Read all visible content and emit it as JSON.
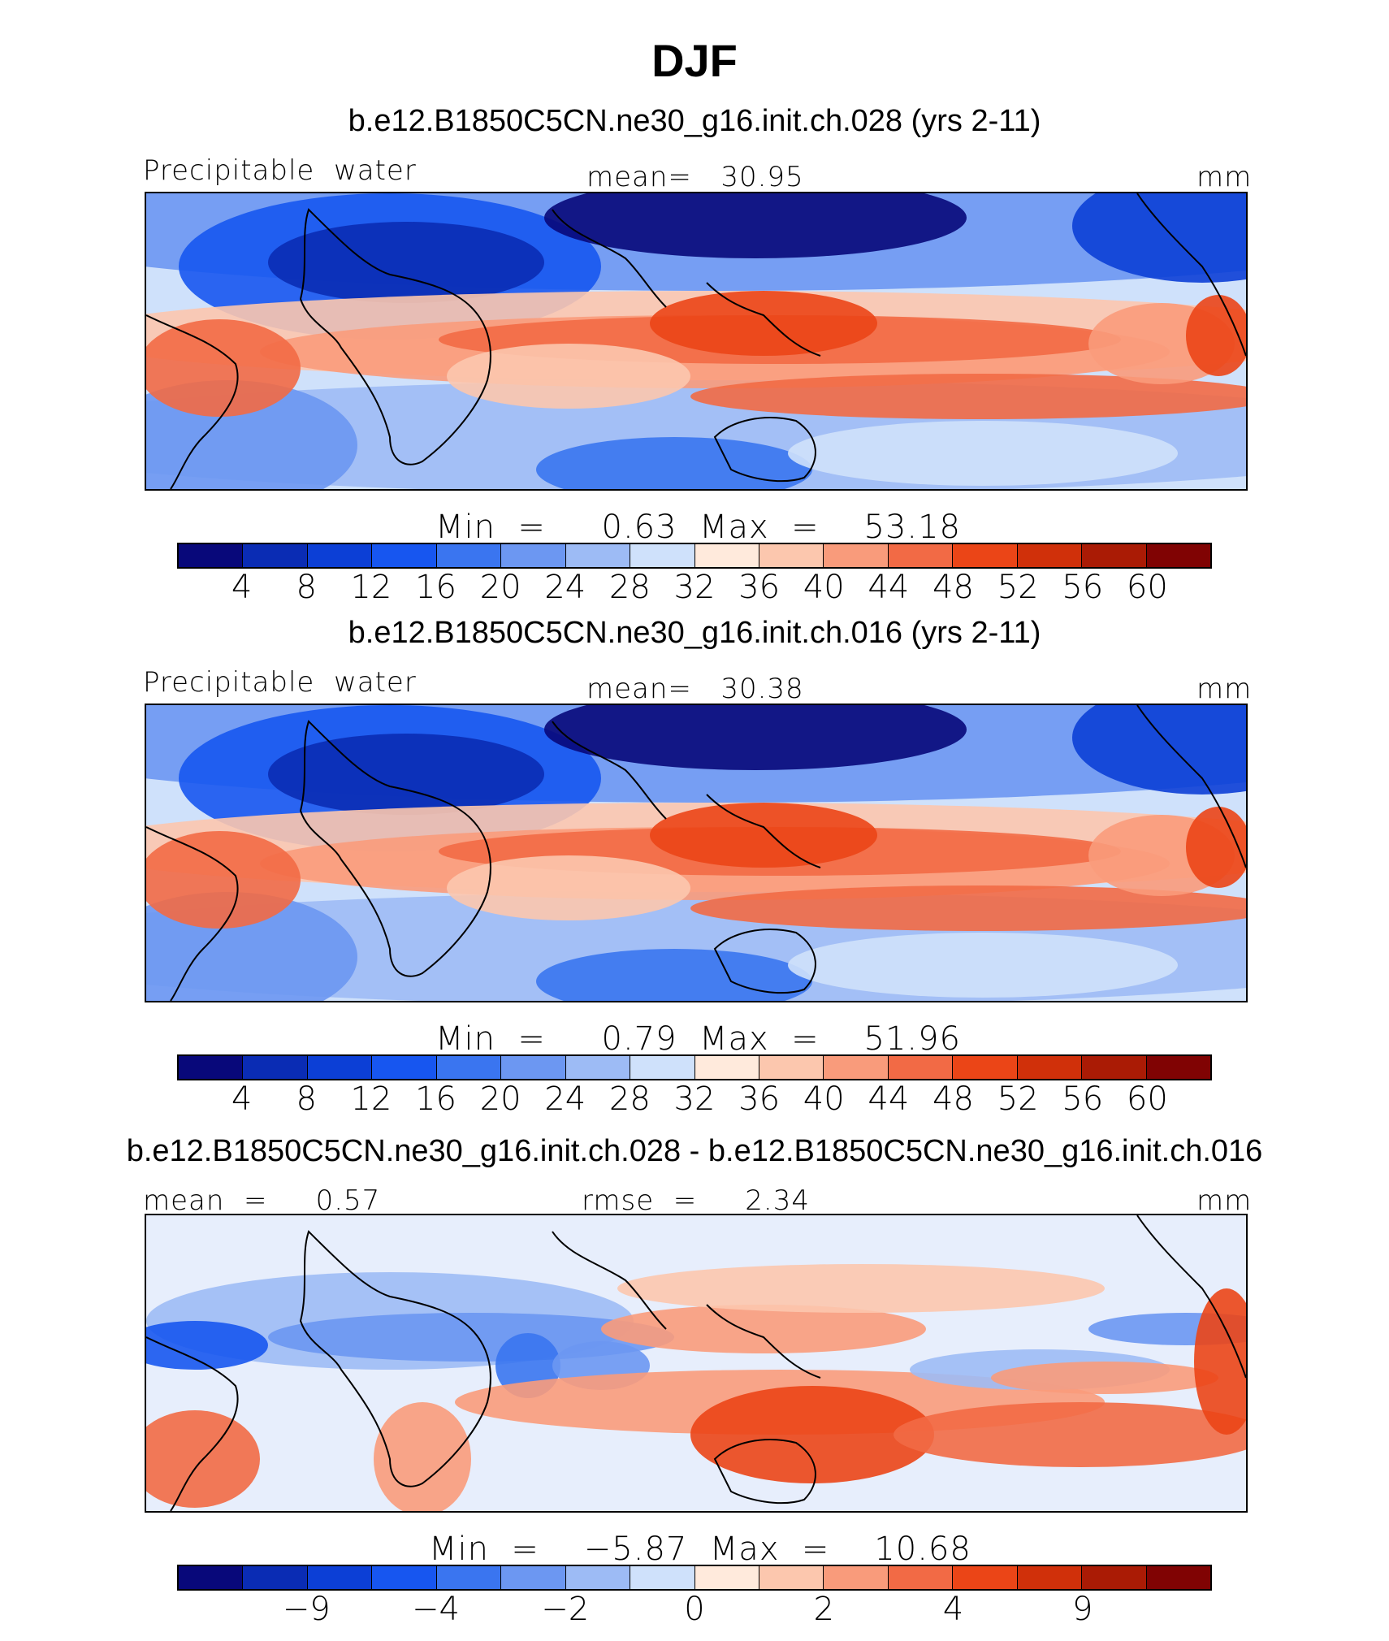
{
  "title": "DJF",
  "colors": {
    "scale": [
      "#08087a",
      "#0a2cb4",
      "#0c3fd6",
      "#1756f0",
      "#3a75f0",
      "#6c97f2",
      "#9dbbf5",
      "#cfe1fb",
      "#ffeadc",
      "#fcc7ae",
      "#f99b7b",
      "#f26a45",
      "#eb4517",
      "#d0300a",
      "#aa1b05",
      "#800303"
    ],
    "coast": "#000000"
  },
  "panels": [
    {
      "title": "b.e12.B1850C5CN.ne30_g16.init.ch.028 (yrs 2-11)",
      "left_label": "Precipitable  water",
      "center_label": "mean=   30.95",
      "units": "mm",
      "minmax": "Min  =     0.63  Max  =    53.18",
      "ticks": [
        "4",
        "8",
        "12",
        "16",
        "20",
        "24",
        "28",
        "32",
        "36",
        "40",
        "44",
        "48",
        "52",
        "56",
        "60"
      ]
    },
    {
      "title": "b.e12.B1850C5CN.ne30_g16.init.ch.016 (yrs 2-11)",
      "left_label": "Precipitable  water",
      "center_label": "mean=   30.38",
      "units": "mm",
      "minmax": "Min  =     0.79  Max  =    51.96",
      "ticks": [
        "4",
        "8",
        "12",
        "16",
        "20",
        "24",
        "28",
        "32",
        "36",
        "40",
        "44",
        "48",
        "52",
        "56",
        "60"
      ]
    },
    {
      "title": "b.e12.B1850C5CN.ne30_g16.init.ch.028 - b.e12.B1850C5CN.ne30_g16.init.ch.016",
      "left_label": "mean  =     0.57",
      "center_label": "rmse  =     2.34",
      "units": "mm",
      "minmax": "Min  =    −5.87  Max  =    10.68",
      "ticks": [
        "−9",
        "−4",
        "−2",
        "0",
        "2",
        "4",
        "9"
      ]
    }
  ]
}
